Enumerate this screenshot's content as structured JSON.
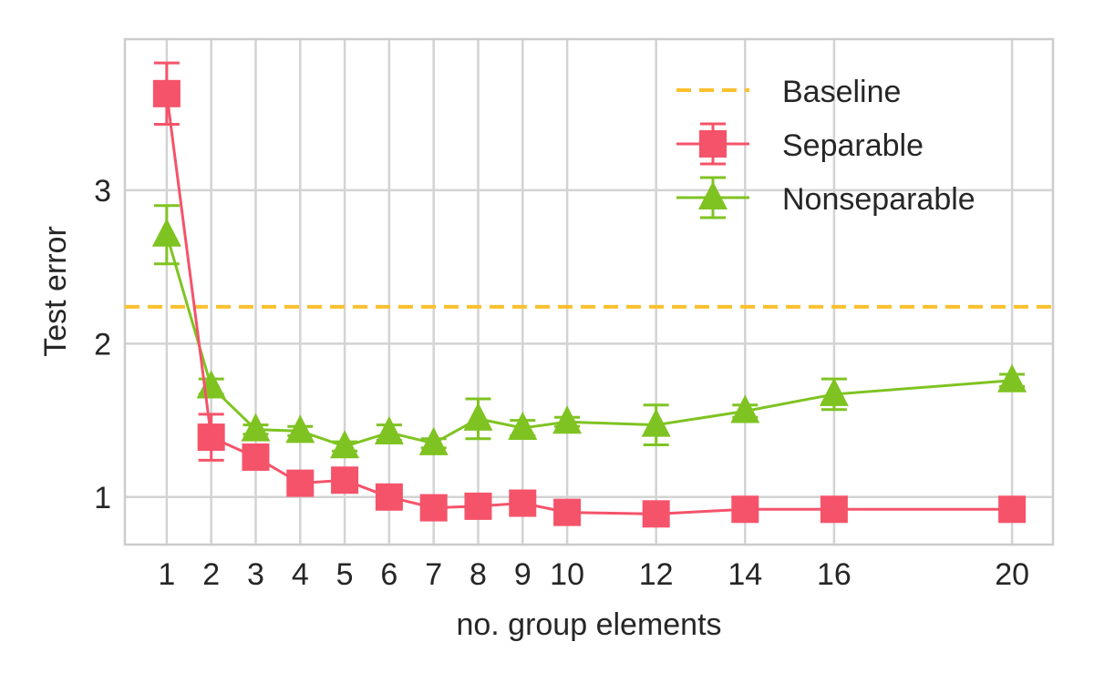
{
  "chart_data": {
    "type": "line",
    "title": "",
    "xlabel": "no. group elements",
    "ylabel": "Test error",
    "x": [
      1,
      2,
      3,
      4,
      5,
      6,
      7,
      8,
      9,
      10,
      12,
      14,
      16,
      20
    ],
    "x_tick_labels": [
      "1",
      "2",
      "3",
      "4",
      "5",
      "6",
      "7",
      "8",
      "9",
      "10",
      "12",
      "14",
      "16",
      "20"
    ],
    "y_ticks": [
      1,
      2,
      3
    ],
    "y_tick_labels": [
      "1",
      "2",
      "3"
    ],
    "xlim": [
      0.06,
      20.92
    ],
    "ylim": [
      0.69,
      3.985
    ],
    "grid": true,
    "legend_position": "top-right",
    "baseline": {
      "name": "Baseline",
      "value": 2.24,
      "color": "#fbc02d"
    },
    "series": [
      {
        "name": "Separable",
        "marker": "square",
        "color": "#f5536a",
        "values": [
          3.63,
          1.39,
          1.26,
          1.09,
          1.11,
          1.0,
          0.93,
          0.94,
          0.96,
          0.9,
          0.89,
          0.92,
          0.92,
          0.92
        ],
        "errors": [
          0.2,
          0.15,
          0.06,
          0.07,
          0.03,
          0.03,
          0.03,
          0.04,
          0.03,
          0.03,
          0.03,
          0.03,
          0.03,
          0.03
        ]
      },
      {
        "name": "Nonseparable",
        "marker": "triangle",
        "color": "#7fc322",
        "values": [
          2.71,
          1.72,
          1.44,
          1.43,
          1.33,
          1.42,
          1.35,
          1.51,
          1.45,
          1.49,
          1.47,
          1.56,
          1.67,
          1.76
        ],
        "errors": [
          0.19,
          0.05,
          0.03,
          0.03,
          0.03,
          0.05,
          0.03,
          0.13,
          0.05,
          0.03,
          0.13,
          0.04,
          0.1,
          0.04
        ]
      }
    ]
  }
}
